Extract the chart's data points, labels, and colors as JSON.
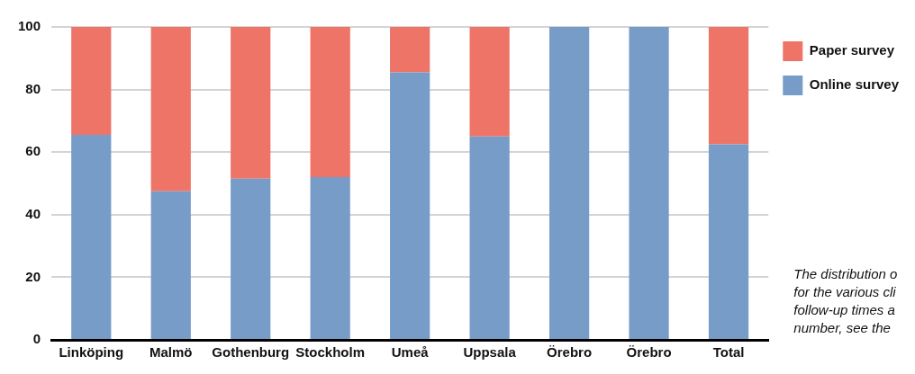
{
  "chart_data": {
    "type": "bar",
    "stacked": true,
    "categories": [
      "Linköping",
      "Malmö",
      "Gothenburg",
      "Stockholm",
      "Umeå",
      "Uppsala",
      "Örebro",
      "Örebro",
      "Total"
    ],
    "series": [
      {
        "name": "Online survey",
        "color": "#789cc8",
        "values": [
          65.5,
          47.5,
          51.5,
          52,
          85.5,
          65,
          100,
          100,
          62.5
        ]
      },
      {
        "name": "Paper survey",
        "color": "#ee7468",
        "values": [
          34.5,
          52.5,
          48.5,
          48,
          14.5,
          35,
          0,
          0,
          37.5
        ]
      }
    ],
    "ylim": [
      0,
      100
    ],
    "yticks": [
      0,
      20,
      40,
      60,
      80,
      100
    ],
    "grid": "y",
    "legend": "top right",
    "annotations": [
      "The distribution o\nfor the various cli\nfollow-up times a\nnumber, see the"
    ]
  }
}
